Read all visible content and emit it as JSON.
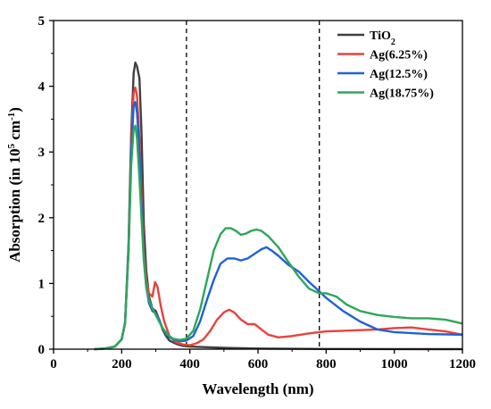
{
  "chart_data": {
    "type": "line",
    "xlabel": "Wavelength (nm)",
    "ylabel": "Absorption (in 10⁵ cm⁻¹)",
    "xlim": [
      0,
      1200
    ],
    "ylim": [
      0,
      5
    ],
    "xticks": [
      0,
      200,
      400,
      600,
      800,
      1000,
      1200
    ],
    "yticks": [
      0,
      1,
      2,
      3,
      4,
      5
    ],
    "grid": false,
    "legend_position": "top-right",
    "reference_lines_x": [
      390,
      780
    ],
    "series": [
      {
        "name": "TiO₂",
        "color": "#404040",
        "points": [
          [
            120,
            0
          ],
          [
            150,
            0.01
          ],
          [
            180,
            0.04
          ],
          [
            200,
            0.15
          ],
          [
            210,
            0.4
          ],
          [
            220,
            1.6
          ],
          [
            228,
            3.3
          ],
          [
            235,
            4.2
          ],
          [
            240,
            4.36
          ],
          [
            245,
            4.3
          ],
          [
            252,
            4.12
          ],
          [
            258,
            3.3
          ],
          [
            265,
            1.9
          ],
          [
            272,
            1.2
          ],
          [
            280,
            0.8
          ],
          [
            290,
            0.62
          ],
          [
            300,
            0.58
          ],
          [
            310,
            0.45
          ],
          [
            320,
            0.3
          ],
          [
            330,
            0.2
          ],
          [
            340,
            0.13
          ],
          [
            360,
            0.08
          ],
          [
            380,
            0.05
          ],
          [
            400,
            0.04
          ],
          [
            450,
            0.03
          ],
          [
            500,
            0.02
          ],
          [
            600,
            0.01
          ],
          [
            700,
            0.005
          ],
          [
            800,
            0.003
          ],
          [
            1000,
            0.001
          ],
          [
            1200,
            0
          ]
        ]
      },
      {
        "name": "Ag(6.25%)",
        "color": "#e8423c",
        "points": [
          [
            120,
            0
          ],
          [
            150,
            0.01
          ],
          [
            180,
            0.04
          ],
          [
            200,
            0.15
          ],
          [
            210,
            0.4
          ],
          [
            220,
            1.5
          ],
          [
            228,
            3.2
          ],
          [
            235,
            3.9
          ],
          [
            240,
            3.98
          ],
          [
            245,
            3.85
          ],
          [
            252,
            3.2
          ],
          [
            258,
            2.4
          ],
          [
            265,
            1.5
          ],
          [
            272,
            1.05
          ],
          [
            280,
            0.85
          ],
          [
            290,
            0.8
          ],
          [
            298,
            1.02
          ],
          [
            305,
            0.95
          ],
          [
            315,
            0.65
          ],
          [
            325,
            0.42
          ],
          [
            340,
            0.2
          ],
          [
            360,
            0.1
          ],
          [
            380,
            0.07
          ],
          [
            400,
            0.06
          ],
          [
            420,
            0.09
          ],
          [
            440,
            0.15
          ],
          [
            460,
            0.28
          ],
          [
            480,
            0.45
          ],
          [
            500,
            0.56
          ],
          [
            515,
            0.6
          ],
          [
            530,
            0.56
          ],
          [
            550,
            0.45
          ],
          [
            570,
            0.38
          ],
          [
            590,
            0.38
          ],
          [
            610,
            0.3
          ],
          [
            630,
            0.22
          ],
          [
            660,
            0.18
          ],
          [
            700,
            0.2
          ],
          [
            750,
            0.24
          ],
          [
            800,
            0.27
          ],
          [
            850,
            0.28
          ],
          [
            900,
            0.29
          ],
          [
            950,
            0.3
          ],
          [
            1000,
            0.32
          ],
          [
            1050,
            0.33
          ],
          [
            1100,
            0.3
          ],
          [
            1150,
            0.27
          ],
          [
            1200,
            0.22
          ]
        ]
      },
      {
        "name": "Ag(12.5%)",
        "color": "#1f62d6",
        "points": [
          [
            120,
            0
          ],
          [
            150,
            0.01
          ],
          [
            180,
            0.04
          ],
          [
            200,
            0.15
          ],
          [
            210,
            0.4
          ],
          [
            220,
            1.5
          ],
          [
            228,
            3.0
          ],
          [
            235,
            3.7
          ],
          [
            240,
            3.76
          ],
          [
            245,
            3.6
          ],
          [
            252,
            3.0
          ],
          [
            258,
            2.2
          ],
          [
            265,
            1.4
          ],
          [
            272,
            0.95
          ],
          [
            280,
            0.7
          ],
          [
            290,
            0.58
          ],
          [
            300,
            0.55
          ],
          [
            310,
            0.45
          ],
          [
            320,
            0.32
          ],
          [
            330,
            0.22
          ],
          [
            350,
            0.15
          ],
          [
            370,
            0.12
          ],
          [
            390,
            0.13
          ],
          [
            410,
            0.2
          ],
          [
            430,
            0.42
          ],
          [
            450,
            0.75
          ],
          [
            470,
            1.05
          ],
          [
            490,
            1.3
          ],
          [
            510,
            1.38
          ],
          [
            530,
            1.38
          ],
          [
            550,
            1.35
          ],
          [
            570,
            1.38
          ],
          [
            590,
            1.45
          ],
          [
            610,
            1.52
          ],
          [
            625,
            1.55
          ],
          [
            640,
            1.5
          ],
          [
            660,
            1.42
          ],
          [
            690,
            1.28
          ],
          [
            720,
            1.18
          ],
          [
            750,
            1.02
          ],
          [
            780,
            0.88
          ],
          [
            800,
            0.78
          ],
          [
            850,
            0.58
          ],
          [
            900,
            0.42
          ],
          [
            950,
            0.3
          ],
          [
            1000,
            0.26
          ],
          [
            1100,
            0.23
          ],
          [
            1200,
            0.22
          ]
        ]
      },
      {
        "name": "Ag(18.75%)",
        "color": "#2ea65a",
        "points": [
          [
            120,
            0
          ],
          [
            150,
            0.01
          ],
          [
            180,
            0.04
          ],
          [
            200,
            0.15
          ],
          [
            210,
            0.4
          ],
          [
            220,
            1.5
          ],
          [
            228,
            2.8
          ],
          [
            235,
            3.35
          ],
          [
            240,
            3.4
          ],
          [
            245,
            3.2
          ],
          [
            252,
            2.6
          ],
          [
            258,
            2.0
          ],
          [
            265,
            1.35
          ],
          [
            272,
            0.95
          ],
          [
            280,
            0.75
          ],
          [
            290,
            0.62
          ],
          [
            300,
            0.52
          ],
          [
            310,
            0.42
          ],
          [
            320,
            0.32
          ],
          [
            335,
            0.22
          ],
          [
            350,
            0.16
          ],
          [
            370,
            0.14
          ],
          [
            390,
            0.16
          ],
          [
            410,
            0.28
          ],
          [
            430,
            0.6
          ],
          [
            450,
            1.05
          ],
          [
            470,
            1.5
          ],
          [
            490,
            1.75
          ],
          [
            505,
            1.84
          ],
          [
            520,
            1.84
          ],
          [
            535,
            1.8
          ],
          [
            550,
            1.74
          ],
          [
            565,
            1.76
          ],
          [
            580,
            1.8
          ],
          [
            595,
            1.82
          ],
          [
            610,
            1.8
          ],
          [
            630,
            1.72
          ],
          [
            660,
            1.55
          ],
          [
            690,
            1.32
          ],
          [
            720,
            1.1
          ],
          [
            750,
            0.92
          ],
          [
            780,
            0.85
          ],
          [
            800,
            0.85
          ],
          [
            830,
            0.8
          ],
          [
            860,
            0.68
          ],
          [
            900,
            0.58
          ],
          [
            950,
            0.52
          ],
          [
            1000,
            0.49
          ],
          [
            1050,
            0.47
          ],
          [
            1100,
            0.47
          ],
          [
            1150,
            0.45
          ],
          [
            1200,
            0.39
          ]
        ]
      }
    ]
  },
  "legend": {
    "items": [
      {
        "base": "TiO",
        "sub": "2",
        "color": "#404040"
      },
      {
        "base": "Ag(6.25%)",
        "sub": "",
        "color": "#e8423c"
      },
      {
        "base": "Ag(12.5%)",
        "sub": "",
        "color": "#1f62d6"
      },
      {
        "base": "Ag(18.75%)",
        "sub": "",
        "color": "#2ea65a"
      }
    ]
  },
  "axis_title_y": {
    "prefix": "Absorption (in 10",
    "sup1": "5",
    "mid": " cm",
    "sup2": "-1",
    "suffix": ")"
  }
}
